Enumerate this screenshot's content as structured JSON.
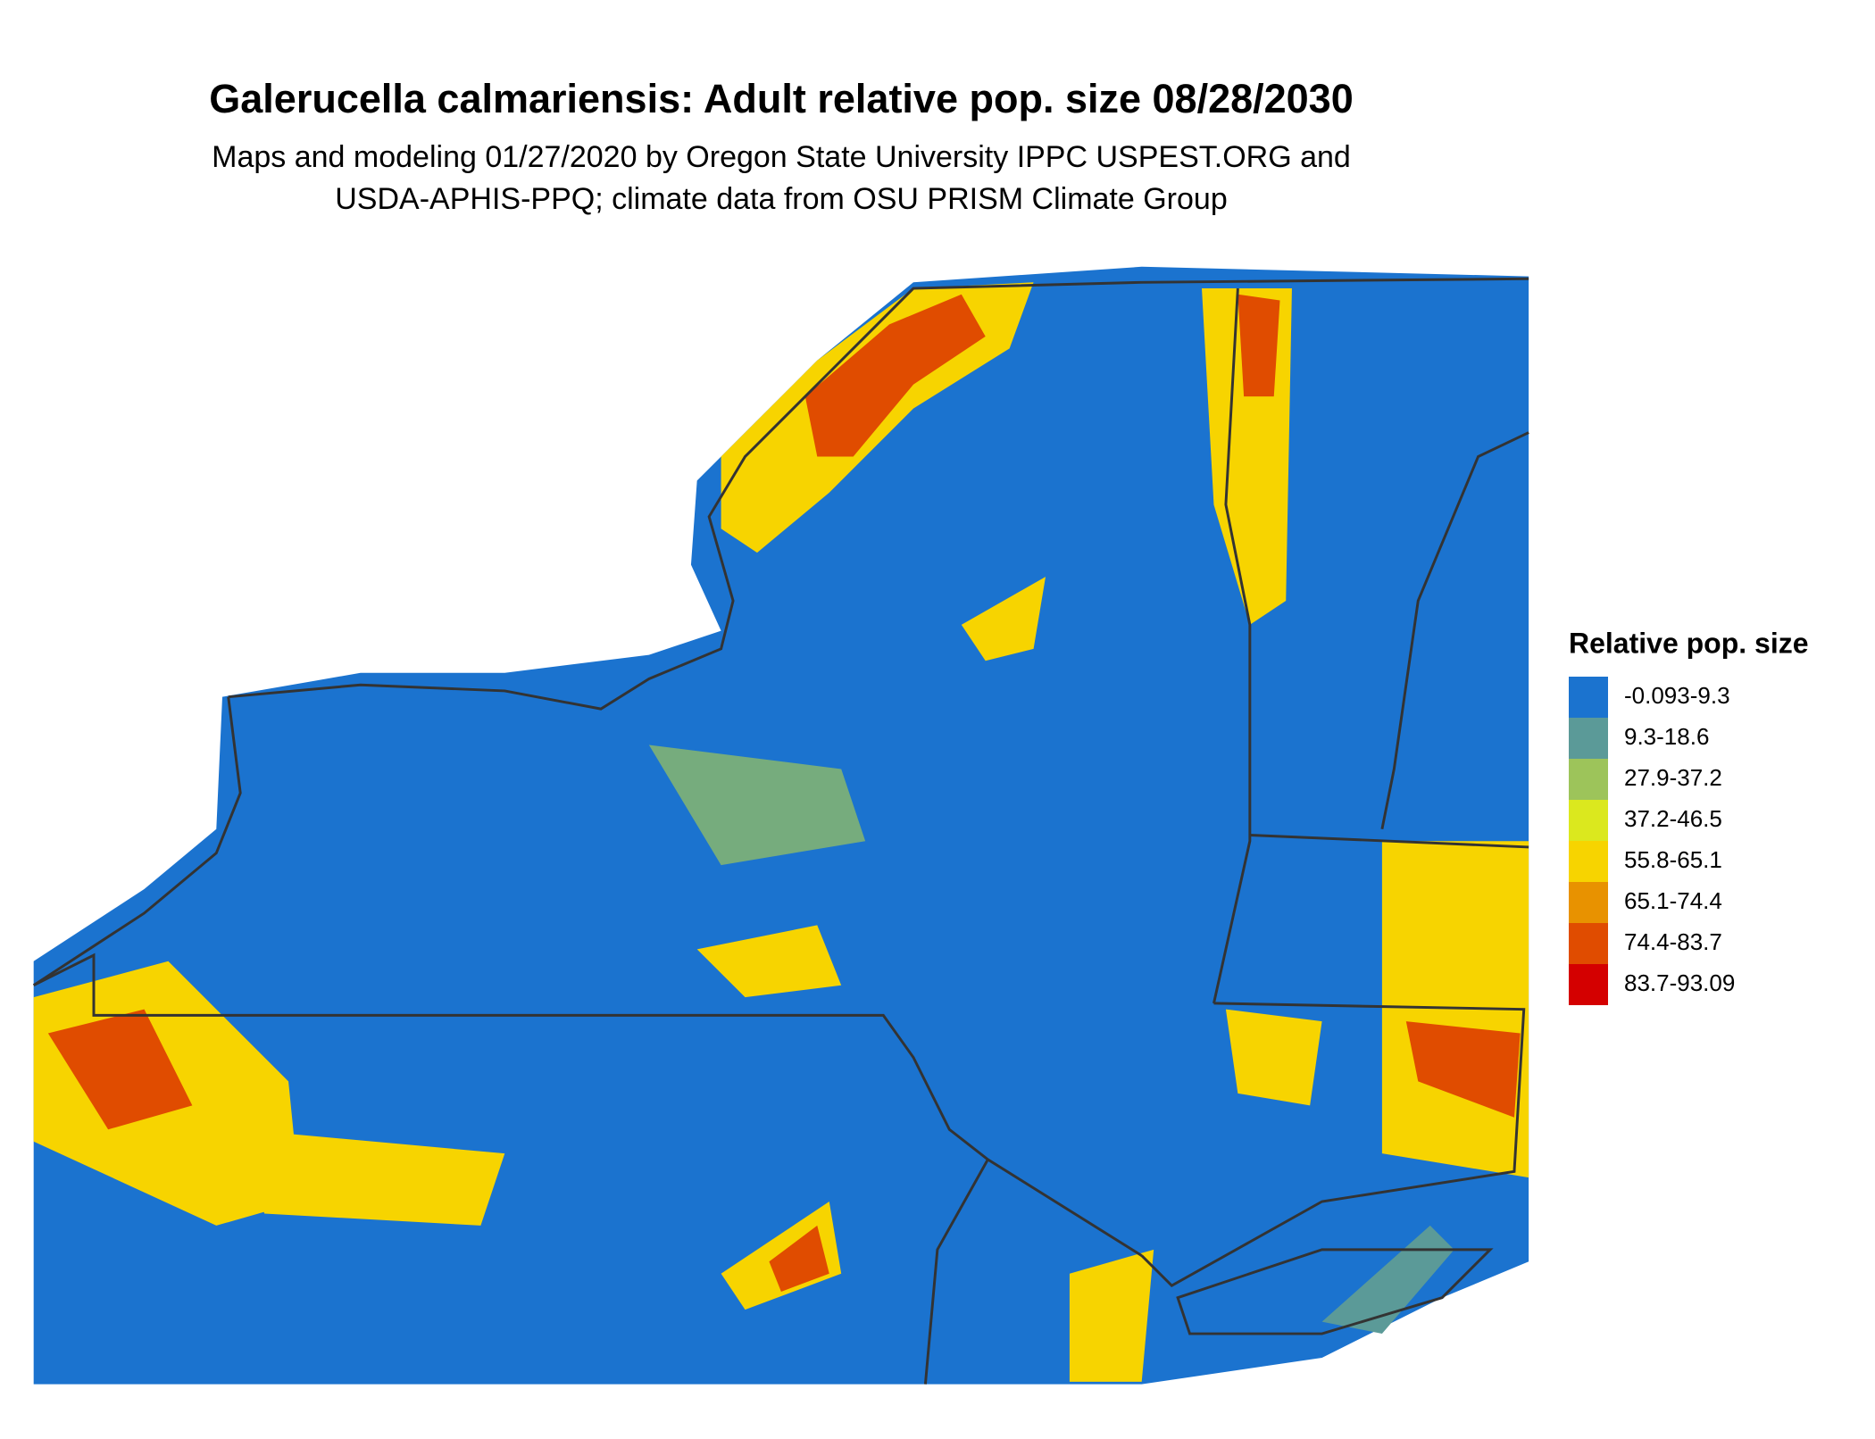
{
  "header": {
    "title": "Galerucella calmariensis: Adult relative pop. size 08/28/2030",
    "subtitle_lines": [
      "Maps and modeling 01/27/2020 by Oregon State University IPPC USPEST.ORG and",
      "USDA-APHIS-PPQ; climate data from OSU PRISM Climate Group"
    ]
  },
  "legend": {
    "title": "Relative pop. size",
    "items": [
      {
        "label": "-0.093-9.3",
        "color": "#1b73cf"
      },
      {
        "label": "9.3-18.6",
        "color": "#5b9a98"
      },
      {
        "label": "27.9-37.2",
        "color": "#9dc45a"
      },
      {
        "label": "37.2-46.5",
        "color": "#dbe81e"
      },
      {
        "label": "55.8-65.1",
        "color": "#f7d400"
      },
      {
        "label": "65.1-74.4",
        "color": "#e89200"
      },
      {
        "label": "74.4-83.7",
        "color": "#e04c00"
      },
      {
        "label": "83.7-93.09",
        "color": "#d40000"
      }
    ]
  }
}
